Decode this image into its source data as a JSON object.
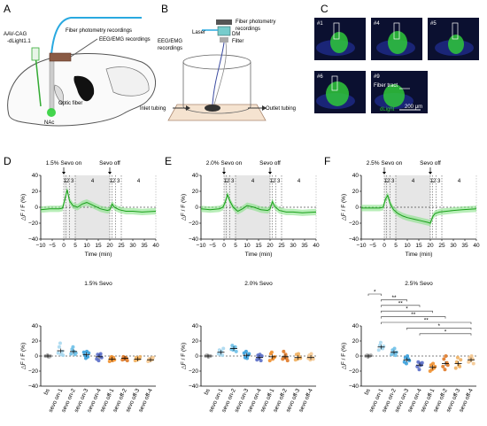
{
  "panel_labels": [
    "A",
    "B",
    "C",
    "D",
    "E",
    "F"
  ],
  "panelA": {
    "virus_line1": "AAV-CAG",
    "virus_line2": "-dLight1.1",
    "fiber_label": "Fiber photometry recordings",
    "eeg_label": "EEG/EMG recordings",
    "optic_label": "Optic fiber",
    "nac_label": "NAc"
  },
  "panelB": {
    "fiber_label_line1": "Fiber photometry",
    "fiber_label_line2": "recordings",
    "laser_label": "Laser",
    "dm_label": "DM",
    "filter_label": "Filter",
    "eeg_line1": "EEG/EMG",
    "eeg_line2": "recordings",
    "inlet_label": "Inlet tubing",
    "outlet_label": "Outlet tubing"
  },
  "panelC": {
    "images": [
      {
        "label": "#1"
      },
      {
        "label": "#4"
      },
      {
        "label": "#5"
      },
      {
        "label": "#6"
      },
      {
        "label": "#9",
        "extra": "Fiber tract"
      }
    ],
    "dlight_label": "dLight",
    "scale_label": "200 μm",
    "colors": {
      "background": "#0b1030",
      "signal": "#2fc83a",
      "tissue": "#1e2a8a"
    }
  },
  "traces": [
    {
      "label_on": "1.5% Sevo on",
      "label_off": "Sevo off",
      "xticks": [
        "−10",
        "−5",
        "0",
        "5",
        "10",
        "15",
        "20",
        "25",
        "30",
        "35",
        "40"
      ],
      "yticks": [
        "40",
        "20",
        "0",
        "−20",
        "−40"
      ],
      "xlabel": "Time (min)",
      "ylabel": "△F / F (%)",
      "segments": [
        "1",
        "2",
        "3",
        "4",
        "1",
        "2",
        "3",
        "4"
      ],
      "chart_data": {
        "type": "line",
        "xlim": [
          -10,
          40
        ],
        "ylim": [
          -40,
          40
        ],
        "sevo_on": 0,
        "sevo_off": 20,
        "x": [
          -10,
          -6,
          -2,
          -0.5,
          0.5,
          1.5,
          2.5,
          4,
          6,
          8,
          10,
          13,
          16,
          19,
          20,
          21,
          22,
          24,
          27,
          30,
          34,
          40
        ],
        "y": [
          -3,
          -2,
          -2,
          -1,
          10,
          22,
          8,
          2,
          0,
          4,
          6,
          2,
          -2,
          -4,
          -3,
          4,
          0,
          -3,
          -5,
          -5,
          -6,
          -5
        ]
      }
    },
    {
      "label_on": "2.0% Sevo on",
      "label_off": "Sevo off",
      "xticks": [
        "−10",
        "−5",
        "0",
        "5",
        "10",
        "15",
        "20",
        "25",
        "30",
        "35",
        "40"
      ],
      "yticks": [
        "40",
        "20",
        "0",
        "−20",
        "−40"
      ],
      "xlabel": "Time (min)",
      "ylabel": "△F / F (%)",
      "segments": [
        "1",
        "2",
        "3",
        "4",
        "1",
        "2",
        "3",
        "4"
      ],
      "chart_data": {
        "type": "line",
        "xlim": [
          -10,
          40
        ],
        "ylim": [
          -40,
          40
        ],
        "sevo_on": 0,
        "sevo_off": 20,
        "x": [
          -10,
          -6,
          -2,
          -0.5,
          0.5,
          1.5,
          2.5,
          4,
          6,
          8,
          10,
          13,
          16,
          19,
          20,
          21,
          22,
          24,
          27,
          30,
          34,
          40
        ],
        "y": [
          -2,
          -3,
          -2,
          0,
          6,
          16,
          8,
          0,
          -5,
          -2,
          2,
          0,
          -3,
          -4,
          -2,
          7,
          1,
          -4,
          -6,
          -6,
          -7,
          -6
        ]
      }
    },
    {
      "label_on": "2.5% Sevo on",
      "label_off": "Sevo off",
      "xticks": [
        "−10",
        "−5",
        "0",
        "5",
        "10",
        "15",
        "20",
        "25",
        "30",
        "35",
        "40"
      ],
      "yticks": [
        "40",
        "20",
        "0",
        "−20",
        "−40"
      ],
      "xlabel": "Time (min)",
      "ylabel": "△F / F (%)",
      "segments": [
        "1",
        "2",
        "3",
        "4",
        "1",
        "2",
        "3",
        "4"
      ],
      "chart_data": {
        "type": "line",
        "xlim": [
          -10,
          40
        ],
        "ylim": [
          -40,
          40
        ],
        "sevo_on": 0,
        "sevo_off": 20,
        "x": [
          -10,
          -6,
          -2,
          -0.5,
          0.5,
          1.5,
          2.5,
          4,
          6,
          8,
          10,
          13,
          16,
          19,
          20,
          21,
          22,
          24,
          27,
          30,
          34,
          40
        ],
        "y": [
          -1,
          -1,
          -1,
          0,
          10,
          15,
          5,
          -3,
          -8,
          -11,
          -13,
          -15,
          -17,
          -19,
          -20,
          -12,
          -8,
          -6,
          -5,
          -4,
          -3,
          -2
        ]
      }
    }
  ],
  "dots": [
    {
      "title": "1.5% Sevo",
      "ylabel": "△F / F (%)",
      "yticks": [
        "40",
        "20",
        "0",
        "−20",
        "−40"
      ],
      "categories": [
        "bs",
        "sevo on-1",
        "sevo on-2",
        "sevo on-3",
        "sevo on-4",
        "sevo off-1",
        "sevo off-2",
        "sevo off-3",
        "sevo off-4"
      ],
      "colors": [
        "#aaaaaa",
        "#a8d8f0",
        "#6ec0e8",
        "#3aa0dc",
        "#5a6ec8",
        "#f09030",
        "#e07a28",
        "#f0b060",
        "#f5c890"
      ],
      "chart_data": {
        "type": "scatter",
        "ylim": [
          -40,
          40
        ],
        "means": [
          0,
          7,
          6,
          2,
          -1,
          -4,
          -3,
          -4,
          -5
        ],
        "points": [
          [
            0,
            0,
            1,
            0,
            -1,
            0
          ],
          [
            4,
            12,
            17,
            2,
            6,
            1
          ],
          [
            3,
            9,
            12,
            6,
            2,
            4
          ],
          [
            5,
            1,
            -3,
            6,
            -1,
            4
          ],
          [
            -4,
            2,
            -6,
            1,
            3,
            -2
          ],
          [
            -7,
            -3,
            -1,
            -6,
            -2,
            -5
          ],
          [
            -5,
            -1,
            -4,
            -2,
            -3,
            -6
          ],
          [
            -6,
            -2,
            -5,
            -3,
            -4,
            -1
          ],
          [
            -7,
            -4,
            -6,
            -3,
            -5,
            -2
          ]
        ]
      }
    },
    {
      "title": "2.0% Sevo",
      "ylabel": "△F / F (%)",
      "yticks": [
        "40",
        "20",
        "0",
        "−20",
        "−40"
      ],
      "categories": [
        "bs",
        "sevo on-1",
        "sevo on-2",
        "sevo on-3",
        "sevo on-4",
        "sevo off-1",
        "sevo off-2",
        "sevo off-3",
        "sevo off-4"
      ],
      "colors": [
        "#aaaaaa",
        "#a8d8f0",
        "#6ec0e8",
        "#3aa0dc",
        "#5a6ec8",
        "#f09030",
        "#e07a28",
        "#f0b060",
        "#f5c890"
      ],
      "chart_data": {
        "type": "scatter",
        "ylim": [
          -40,
          40
        ],
        "means": [
          0,
          5,
          10,
          1,
          -2,
          -1,
          -1,
          -2,
          -2
        ],
        "points": [
          [
            0,
            1,
            0,
            -1,
            0,
            0
          ],
          [
            3,
            8,
            2,
            6,
            1,
            10
          ],
          [
            9,
            14,
            8,
            11,
            12,
            6
          ],
          [
            4,
            -2,
            6,
            -3,
            1,
            3
          ],
          [
            -5,
            1,
            -3,
            2,
            -6,
            0
          ],
          [
            -6,
            3,
            5,
            -4,
            -2,
            -1
          ],
          [
            -4,
            6,
            -2,
            2,
            -3,
            -6
          ],
          [
            -5,
            2,
            -4,
            3,
            -1,
            -3
          ],
          [
            -3,
            1,
            -5,
            3,
            -2,
            -4
          ]
        ]
      }
    },
    {
      "title": "2.5% Sevo",
      "ylabel": "△F / F (%)",
      "yticks": [
        "40",
        "20",
        "0",
        "−20",
        "−40"
      ],
      "categories": [
        "bs",
        "sevo on-1",
        "sevo on-2",
        "sevo on-3",
        "sevo on-4",
        "sevo off-1",
        "sevo off-2",
        "sevo off-3",
        "sevo off-4"
      ],
      "colors": [
        "#aaaaaa",
        "#a8d8f0",
        "#6ec0e8",
        "#3aa0dc",
        "#5a6ec8",
        "#f09030",
        "#e07a28",
        "#f0b060",
        "#f5c890"
      ],
      "significance": [
        {
          "from": 0,
          "to": 1,
          "label": "*"
        },
        {
          "from": 1,
          "to": 3,
          "label": "**"
        },
        {
          "from": 1,
          "to": 4,
          "label": "**"
        },
        {
          "from": 1,
          "to": 5,
          "label": "*"
        },
        {
          "from": 1,
          "to": 6,
          "label": "**"
        },
        {
          "from": 1,
          "to": 8,
          "label": "**"
        },
        {
          "from": 3,
          "to": 8,
          "label": "*"
        },
        {
          "from": 4,
          "to": 8,
          "label": "*"
        }
      ],
      "chart_data": {
        "type": "scatter",
        "ylim": [
          -40,
          40
        ],
        "means": [
          0,
          12,
          5,
          -5,
          -12,
          -15,
          -10,
          -10,
          -5
        ],
        "points": [
          [
            0,
            1,
            -1,
            0,
            0,
            1
          ],
          [
            8,
            14,
            18,
            11,
            10,
            13
          ],
          [
            2,
            8,
            4,
            10,
            1,
            5
          ],
          [
            -8,
            -2,
            -10,
            0,
            -4,
            -6
          ],
          [
            -14,
            -8,
            -18,
            -10,
            -12,
            -9
          ],
          [
            -20,
            -12,
            -18,
            -10,
            -16,
            -14
          ],
          [
            -14,
            -4,
            -18,
            0,
            -9,
            -12
          ],
          [
            -16,
            -8,
            -2,
            -12,
            -14,
            -5
          ],
          [
            -8,
            -2,
            -6,
            0,
            -4,
            -10
          ]
        ]
      }
    }
  ]
}
